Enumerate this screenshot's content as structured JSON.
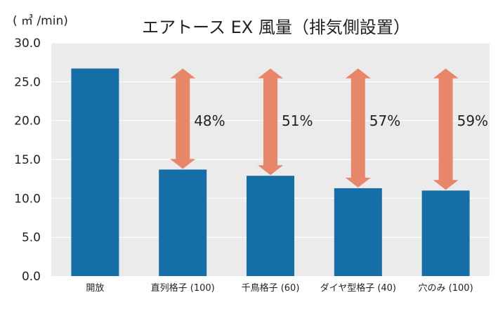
{
  "chart_data": {
    "type": "bar",
    "title": "エアトース EX 風量（排気側設置）",
    "unit_label": "( ㎥ /min)",
    "xlabel": "",
    "ylabel": "",
    "categories": [
      "開放",
      "直列格子 (100)",
      "千鳥格子 (60)",
      "ダイヤ型格子 (40)",
      "穴のみ (100)"
    ],
    "values": [
      26.7,
      13.7,
      12.9,
      11.3,
      11.0
    ],
    "ylim": [
      0,
      30
    ],
    "yticks": [
      "0.0",
      "5.0",
      "10.0",
      "15.0",
      "20.0",
      "25.0",
      "30.0"
    ],
    "annotations": [
      "",
      "48%",
      "51%",
      "57%",
      "59%"
    ],
    "grid": true,
    "colors": {
      "bar": "#156ea6",
      "arrow": "#e8866a",
      "plot_background": "#ebebeb",
      "grid": "#ffffff"
    }
  }
}
